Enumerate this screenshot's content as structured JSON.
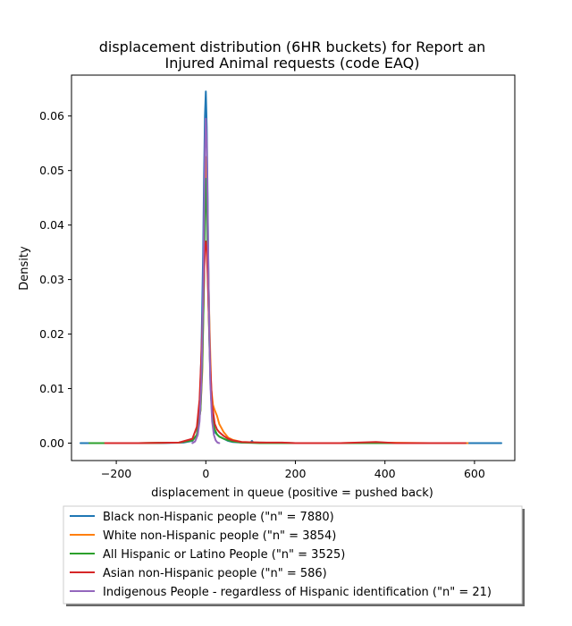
{
  "chart_data": {
    "type": "line",
    "title_line1": "displacement distribution (6HR buckets) for Report an",
    "title_line2": "Injured Animal requests (code EAQ)",
    "xlabel": "displacement in queue (positive = pushed back)",
    "ylabel": "Density",
    "xlim": [
      -300,
      690
    ],
    "ylim": [
      -0.0032,
      0.0675
    ],
    "xticks": [
      -200,
      0,
      200,
      400,
      600
    ],
    "xtick_labels": [
      "−200",
      "0",
      "200",
      "400",
      "600"
    ],
    "yticks": [
      0.0,
      0.01,
      0.02,
      0.03,
      0.04,
      0.05,
      0.06
    ],
    "ytick_labels": [
      "0.00",
      "0.01",
      "0.02",
      "0.03",
      "0.04",
      "0.05",
      "0.06"
    ],
    "legend_position": "below",
    "series": [
      {
        "name": "Black non-Hispanic people (\"n\" = 7880)",
        "color": "#1f77b4",
        "x": [
          -280,
          -200,
          -100,
          -50,
          -30,
          -20,
          -14,
          -10,
          -6,
          -4,
          -2,
          0,
          2,
          4,
          6,
          10,
          14,
          20,
          30,
          40,
          50,
          60,
          80,
          100,
          103,
          106,
          120,
          200,
          300,
          380,
          500,
          600,
          660
        ],
        "y": [
          0.0,
          0.0,
          0.0,
          0.0001,
          0.0004,
          0.0015,
          0.006,
          0.016,
          0.035,
          0.049,
          0.06,
          0.0645,
          0.058,
          0.045,
          0.03,
          0.012,
          0.005,
          0.002,
          0.0012,
          0.0008,
          0.0004,
          0.0002,
          0.0001,
          0.0001,
          0.0004,
          0.0001,
          0.0001,
          0.0,
          0.0,
          0.0,
          0.0,
          0.0,
          0.0
        ]
      },
      {
        "name": "White non-Hispanic people (\"n\" = 3854)",
        "color": "#ff7f0e",
        "x": [
          -225,
          -150,
          -60,
          -30,
          -20,
          -12,
          -8,
          -4,
          -2,
          0,
          2,
          4,
          8,
          12,
          16,
          20,
          25,
          30,
          40,
          50,
          60,
          80,
          120,
          200,
          300,
          380,
          500,
          585
        ],
        "y": [
          0.0,
          0.0,
          0.0001,
          0.0005,
          0.0015,
          0.006,
          0.013,
          0.03,
          0.045,
          0.0525,
          0.048,
          0.038,
          0.022,
          0.01,
          0.007,
          0.006,
          0.005,
          0.0035,
          0.002,
          0.001,
          0.0006,
          0.0002,
          0.0001,
          0.0,
          0.0,
          0.0001,
          0.0,
          0.0
        ]
      },
      {
        "name": "All Hispanic or Latino People (\"n\" = 3525)",
        "color": "#2ca02c",
        "x": [
          -260,
          -150,
          -60,
          -30,
          -20,
          -12,
          -8,
          -4,
          -2,
          0,
          2,
          4,
          8,
          12,
          16,
          20,
          25,
          30,
          40,
          50,
          60,
          80,
          120,
          200,
          300,
          400,
          500,
          580
        ],
        "y": [
          0.0,
          0.0,
          0.0001,
          0.0005,
          0.0015,
          0.006,
          0.014,
          0.03,
          0.042,
          0.0485,
          0.043,
          0.033,
          0.018,
          0.008,
          0.004,
          0.0025,
          0.0016,
          0.0012,
          0.0008,
          0.0005,
          0.0003,
          0.0001,
          0.0,
          0.0,
          0.0,
          0.0,
          0.0,
          0.0
        ]
      },
      {
        "name": "Asian non-Hispanic people (\"n\" = 586)",
        "color": "#d62728",
        "x": [
          -225,
          -150,
          -60,
          -30,
          -20,
          -14,
          -10,
          -6,
          -4,
          -2,
          0,
          2,
          4,
          6,
          10,
          14,
          20,
          25,
          30,
          40,
          50,
          60,
          80,
          120,
          170,
          200,
          300,
          380,
          425,
          500,
          580
        ],
        "y": [
          0.0,
          0.0,
          0.0001,
          0.0008,
          0.003,
          0.008,
          0.016,
          0.026,
          0.031,
          0.0355,
          0.037,
          0.0355,
          0.031,
          0.025,
          0.014,
          0.007,
          0.0035,
          0.0025,
          0.002,
          0.0013,
          0.0008,
          0.0005,
          0.0002,
          0.0001,
          0.0001,
          0.0,
          0.0,
          0.0002,
          0.0,
          0.0,
          0.0
        ]
      },
      {
        "name": "Indigenous People - regardless of Hispanic identification (\"n\" = 21)",
        "color": "#9467bd",
        "x": [
          -30,
          -24,
          -18,
          -14,
          -10,
          -8,
          -6,
          -4,
          -2,
          0,
          2,
          4,
          6,
          8,
          10,
          14,
          18,
          22,
          26,
          30
        ],
        "y": [
          0.0,
          0.0003,
          0.0015,
          0.004,
          0.011,
          0.018,
          0.028,
          0.041,
          0.054,
          0.0595,
          0.055,
          0.043,
          0.03,
          0.019,
          0.011,
          0.004,
          0.0015,
          0.0005,
          0.0001,
          0.0
        ]
      }
    ]
  }
}
